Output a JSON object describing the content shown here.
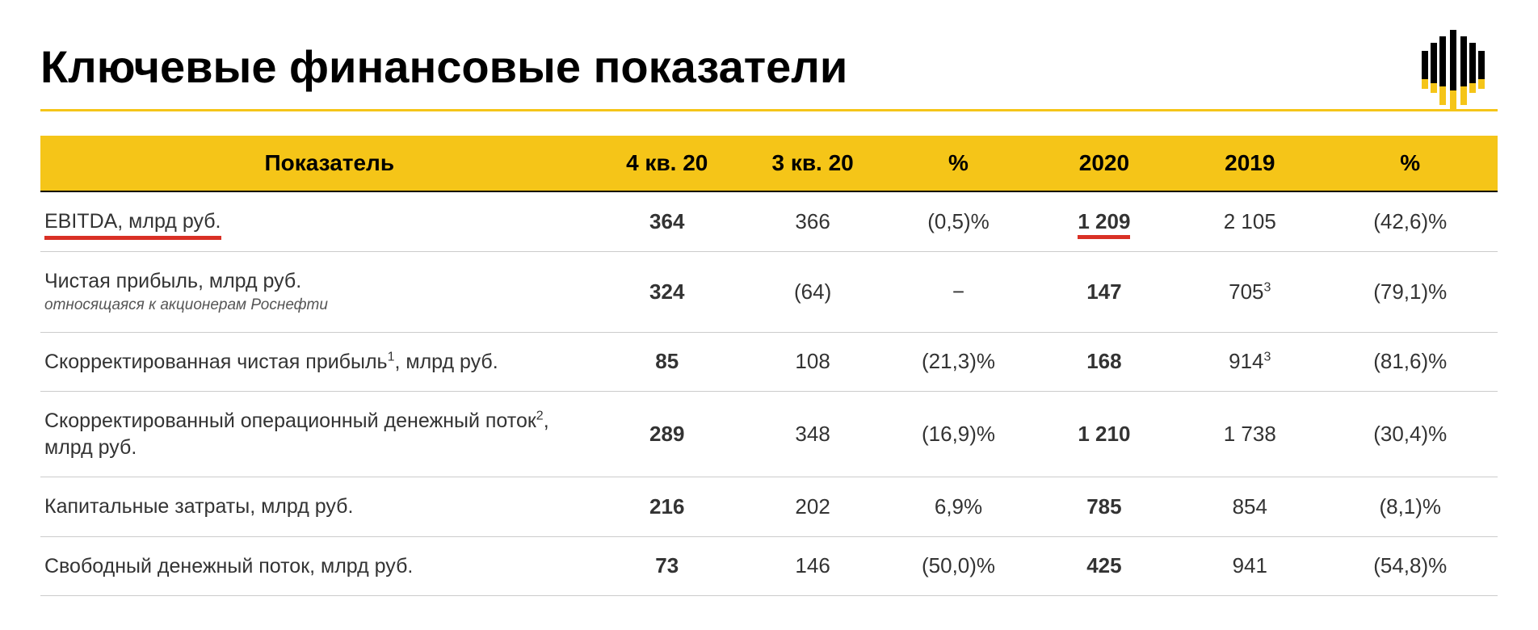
{
  "title": "Ключевые финансовые показатели",
  "colors": {
    "brand_yellow": "#f5c518",
    "underline_red": "#d93025",
    "text": "#333333",
    "background": "#ffffff"
  },
  "table": {
    "columns": [
      "Показатель",
      "4 кв. 20",
      "3 кв. 20",
      "%",
      "2020",
      "2019",
      "%"
    ],
    "rows": [
      {
        "metric": "EBITDA, млрд руб.",
        "metric_underline": true,
        "q4": "364",
        "q3": "366",
        "pct1": "(0,5)%",
        "y2020": "1 209",
        "y2020_underline": true,
        "y2019": "2 105",
        "pct2": "(42,6)%"
      },
      {
        "metric": "Чистая прибыль, млрд руб.",
        "subtext": "относящаяся к акционерам Роснефти",
        "q4": "324",
        "q3": "(64)",
        "pct1": "−",
        "y2020": "147",
        "y2019": "705",
        "y2019_sup": "3",
        "pct2": "(79,1)%"
      },
      {
        "metric": "Скорректированная чистая прибыль",
        "metric_sup": "1",
        "metric_suffix": ", млрд руб.",
        "q4": "85",
        "q3": "108",
        "pct1": "(21,3)%",
        "y2020": "168",
        "y2019": "914",
        "y2019_sup": "3",
        "pct2": "(81,6)%"
      },
      {
        "metric": "Скорректированный операционный денежный поток",
        "metric_sup": "2",
        "metric_suffix": ", млрд руб.",
        "q4": "289",
        "q3": "348",
        "pct1": "(16,9)%",
        "y2020": "1 210",
        "y2019": "1 738",
        "pct2": "(30,4)%"
      },
      {
        "metric": "Капитальные затраты, млрд руб.",
        "q4": "216",
        "q3": "202",
        "pct1": "6,9%",
        "y2020": "785",
        "y2019": "854",
        "pct2": "(8,1)%"
      },
      {
        "metric": "Свободный денежный поток, млрд руб.",
        "q4": "73",
        "q3": "146",
        "pct1": "(50,0)%",
        "y2020": "425",
        "y2019": "941",
        "pct2": "(54,8)%"
      }
    ]
  }
}
